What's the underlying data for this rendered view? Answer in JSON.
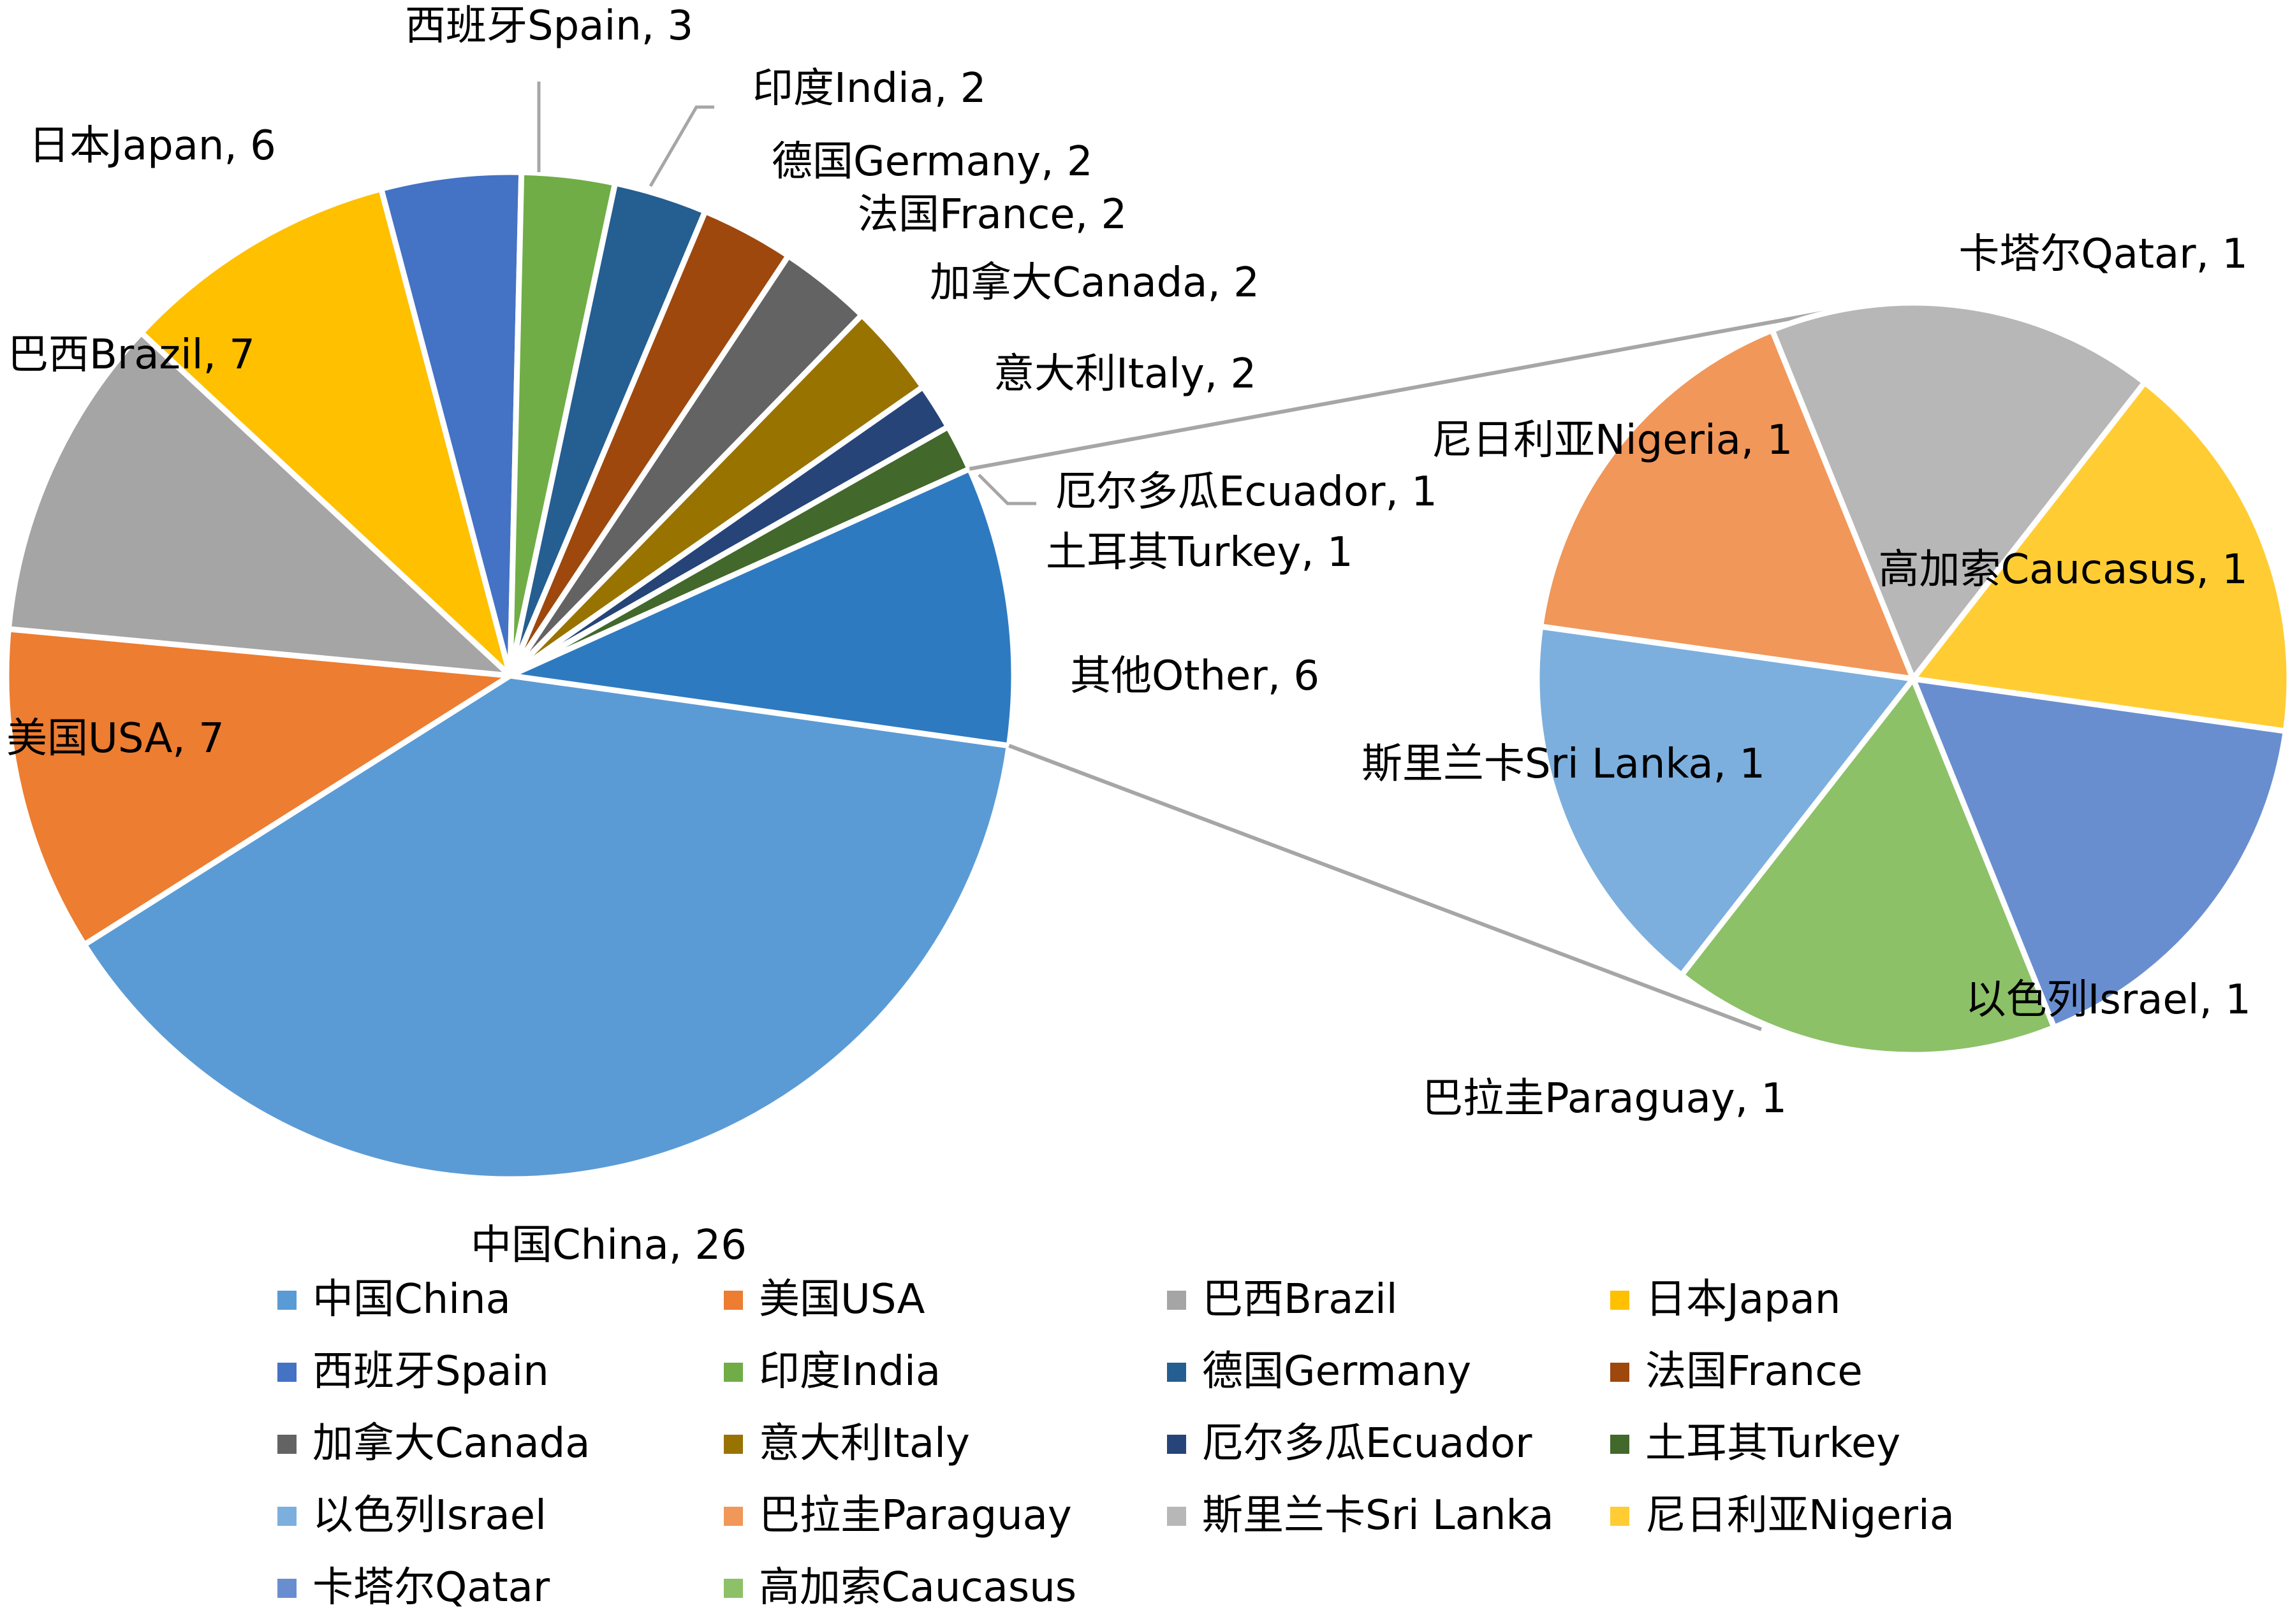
{
  "chart_data": {
    "type": "pie",
    "subtype": "pie-of-pie",
    "main_pie": {
      "slices": [
        {
          "label": "中国China",
          "value": 26,
          "data_label": "中国China, 26",
          "color": "#5b9bd5"
        },
        {
          "label": "美国USA",
          "value": 7,
          "data_label": "美国USA, 7",
          "color": "#ed7d31"
        },
        {
          "label": "巴西Brazil",
          "value": 7,
          "data_label": "巴西Brazil, 7",
          "color": "#a5a5a5"
        },
        {
          "label": "日本Japan",
          "value": 6,
          "data_label": "日本Japan, 6",
          "color": "#ffc000"
        },
        {
          "label": "西班牙Spain",
          "value": 3,
          "data_label": "西班牙Spain, 3",
          "color": "#4472c4"
        },
        {
          "label": "印度India",
          "value": 2,
          "data_label": "印度India, 2",
          "color": "#70ad47"
        },
        {
          "label": "德国Germany",
          "value": 2,
          "data_label": "德国Germany, 2",
          "color": "#255e91"
        },
        {
          "label": "法国France",
          "value": 2,
          "data_label": "法国France, 2",
          "color": "#9e480e"
        },
        {
          "label": "加拿大Canada",
          "value": 2,
          "data_label": "加拿大Canada, 2",
          "color": "#636363"
        },
        {
          "label": "意大利Italy",
          "value": 2,
          "data_label": "意大利Italy, 2",
          "color": "#997300"
        },
        {
          "label": "厄尔多瓜Ecuador",
          "value": 1,
          "data_label": "厄尔多瓜Ecuador, 1",
          "color": "#264478"
        },
        {
          "label": "土耳其Turkey",
          "value": 1,
          "data_label": "土耳其Turkey, 1",
          "color": "#43682b"
        },
        {
          "label": "其他Other",
          "value": 6,
          "data_label": "其他Other, 6",
          "color": "#2e7ac0"
        }
      ]
    },
    "secondary_pie": {
      "slices": [
        {
          "label": "卡塔尔Qatar",
          "value": 1,
          "data_label": "卡塔尔Qatar, 1",
          "color": "#698ed0"
        },
        {
          "label": "高加索Caucasus",
          "value": 1,
          "data_label": "高加索Caucasus, 1",
          "color": "#8cc168"
        },
        {
          "label": "以色列Israel",
          "value": 1,
          "data_label": "以色列Israel, 1",
          "color": "#7cafdd"
        },
        {
          "label": "巴拉圭Paraguay",
          "value": 1,
          "data_label": "巴拉圭Paraguay, 1",
          "color": "#f1975a"
        },
        {
          "label": "斯里兰卡Sri Lanka",
          "value": 1,
          "data_label": "斯里兰卡Sri Lanka, 1",
          "color": "#b7b7b7"
        },
        {
          "label": "尼日利亚Nigeria",
          "value": 1,
          "data_label": "尼日利亚Nigeria, 1",
          "color": "#ffcd33"
        }
      ]
    },
    "legend": {
      "position": "bottom",
      "entries": [
        {
          "label": "中国China",
          "color": "#5b9bd5"
        },
        {
          "label": "美国USA",
          "color": "#ed7d31"
        },
        {
          "label": "巴西Brazil",
          "color": "#a5a5a5"
        },
        {
          "label": "日本Japan",
          "color": "#ffc000"
        },
        {
          "label": "西班牙Spain",
          "color": "#4472c4"
        },
        {
          "label": "印度India",
          "color": "#70ad47"
        },
        {
          "label": "德国Germany",
          "color": "#255e91"
        },
        {
          "label": "法国France",
          "color": "#9e480e"
        },
        {
          "label": "加拿大Canada",
          "color": "#636363"
        },
        {
          "label": "意大利Italy",
          "color": "#997300"
        },
        {
          "label": "厄尔多瓜Ecuador",
          "color": "#264478"
        },
        {
          "label": "土耳其Turkey",
          "color": "#43682b"
        },
        {
          "label": "以色列Israel",
          "color": "#7cafdd"
        },
        {
          "label": "巴拉圭Paraguay",
          "color": "#f1975a"
        },
        {
          "label": "斯里兰卡Sri Lanka",
          "color": "#b7b7b7"
        },
        {
          "label": "尼日利亚Nigeria",
          "color": "#ffcd33"
        },
        {
          "label": "卡塔尔Qatar",
          "color": "#698ed0"
        },
        {
          "label": "高加索Caucasus",
          "color": "#8cc168"
        }
      ]
    }
  }
}
